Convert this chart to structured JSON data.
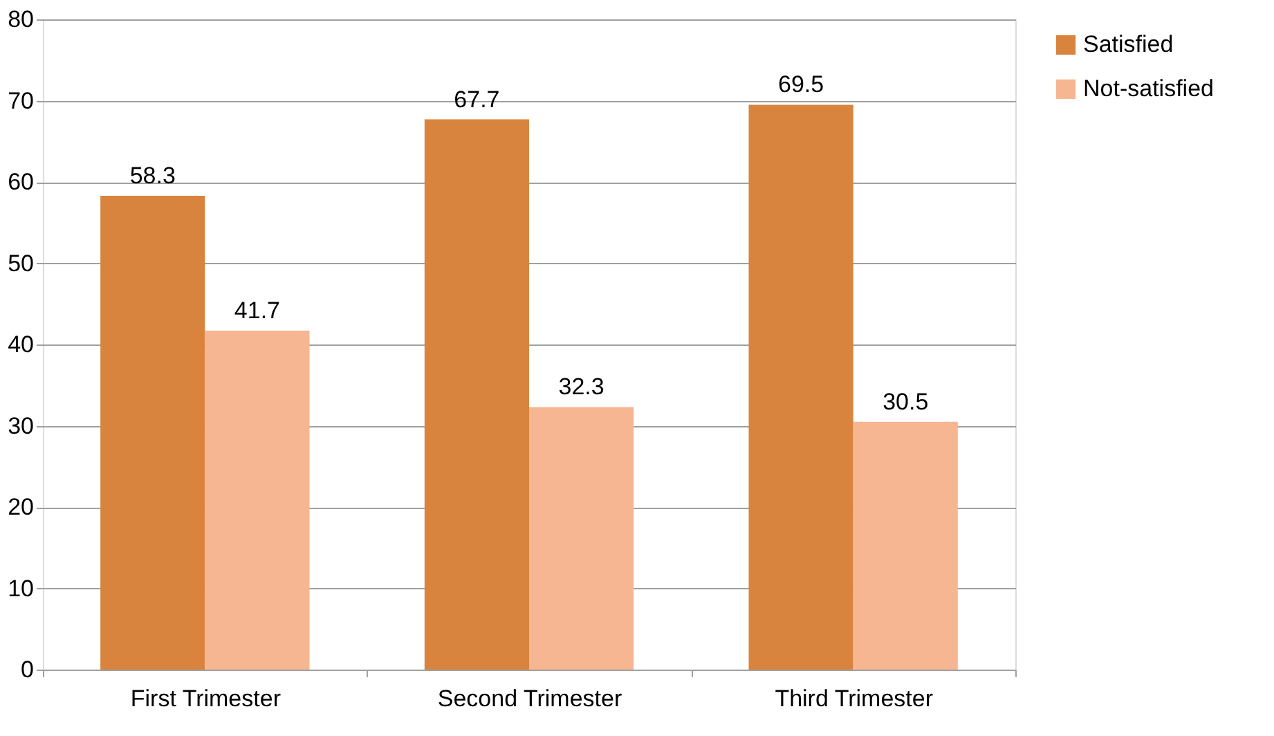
{
  "chart_data": {
    "type": "bar",
    "categories": [
      "First Trimester",
      "Second Trimester",
      "Third Trimester"
    ],
    "series": [
      {
        "name": "Satisfied",
        "color": "#d9843e",
        "values": [
          58.3,
          67.7,
          69.5
        ]
      },
      {
        "name": "Not-satisfied",
        "color": "#f7b692",
        "values": [
          41.7,
          32.3,
          30.5
        ]
      }
    ],
    "ylim": [
      0,
      80
    ],
    "yticks": [
      0,
      10,
      20,
      30,
      40,
      50,
      60,
      70,
      80
    ],
    "grid": "y",
    "legend": "right",
    "data_labels": true
  }
}
